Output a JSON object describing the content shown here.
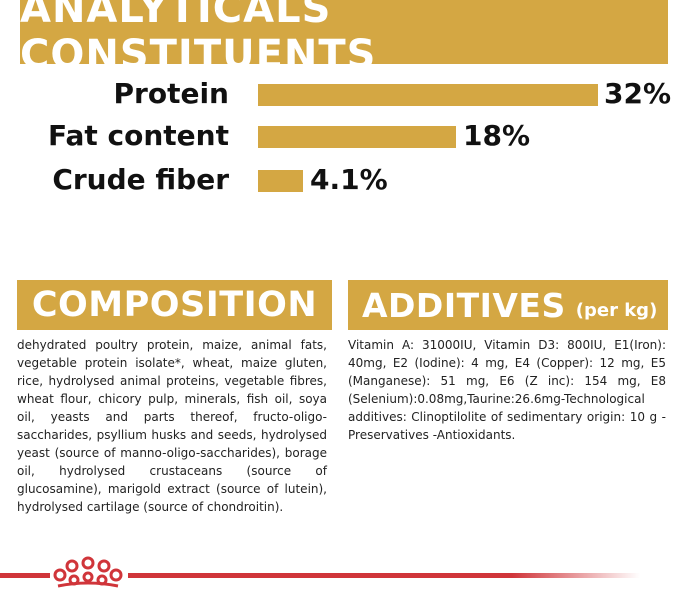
{
  "header": {
    "title": "ANALYTICALS CONSTITUENTS"
  },
  "constituents": [
    {
      "label": "Protein",
      "value": "32%",
      "percent": 32
    },
    {
      "label": "Fat content",
      "value": "18%",
      "percent": 18
    },
    {
      "label": "Crude fiber",
      "value": "4.1%",
      "percent": 4.1
    }
  ],
  "composition": {
    "title": "COMPOSITION",
    "text": "dehydrated poultry protein, maize, animal fats, vegetable protein isolate*, wheat, maize gluten, rice, hydrolysed animal proteins, vegetable fibres, wheat flour, chicory pulp, minerals, fish oil, soya oil, yeasts and parts thereof, fructo-oligo-saccharides, psyllium husks and seeds, hydrolysed yeast (source of manno-oligo-saccharides), borage oil, hydrolysed crustaceans (source of glucosamine), marigold extract (source of lutein), hydrolysed cartilage (source of chondroitin)."
  },
  "additives": {
    "title": "ADDITIVES",
    "unit": "(per kg)",
    "text": "Vitamin A: 31000IU, Vitamin D3: 800IU, E1(Iron): 40mg, E2 (Iodine): 4 mg, E4 (Copper): 12 mg, E5 (Manganese): 51 mg, E6 (Z inc): 154 mg, E8 (Selenium):0.08mg,Taurine:26.6mg-Technological additives: Clinoptilolite of sedimentary origin: 10 g - Preservatives -Antioxidants."
  },
  "colors": {
    "gold": "#d4a743",
    "red": "#d0353a",
    "text": "#1a1a1a"
  },
  "footer": {
    "icon": "crown-logo-icon"
  }
}
